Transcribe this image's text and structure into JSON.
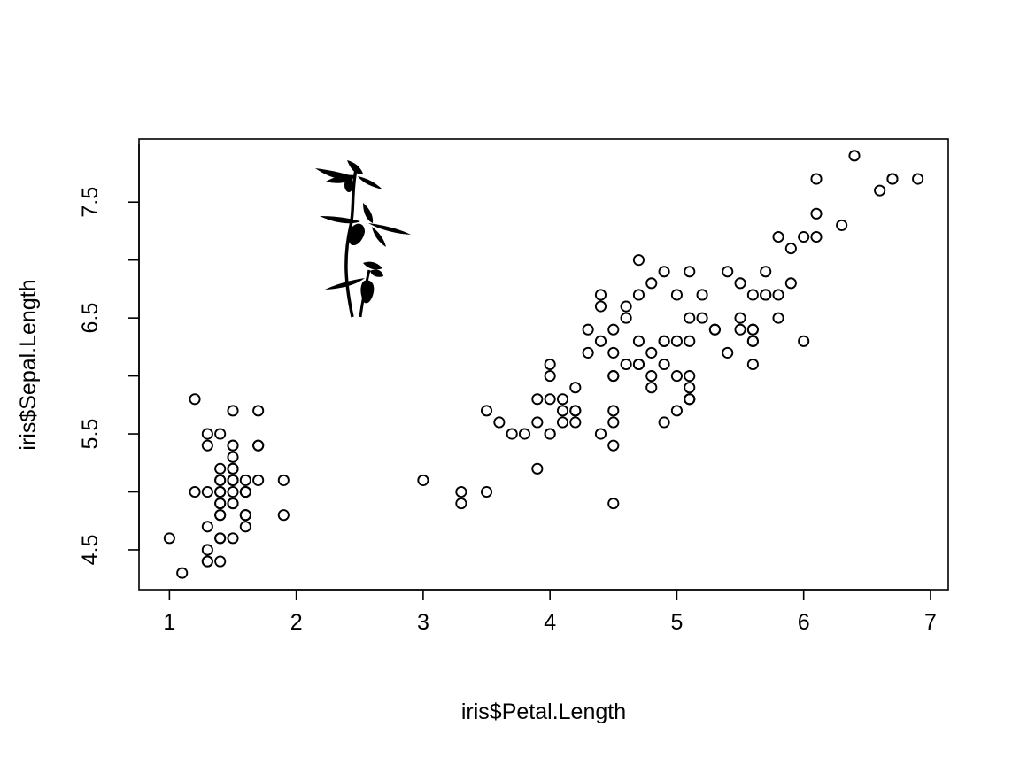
{
  "chart_data": {
    "type": "scatter",
    "title": "",
    "xlabel": "iris$Petal.Length",
    "ylabel": "iris$Sepal.Length",
    "xlim": [
      0.76,
      7.14
    ],
    "ylim": [
      4.156,
      8.044
    ],
    "xticks": [
      1,
      2,
      3,
      4,
      5,
      6,
      7
    ],
    "xtick_labels": [
      "1",
      "2",
      "3",
      "4",
      "5",
      "6",
      "7"
    ],
    "yticks": [
      4.5,
      5.0,
      5.5,
      6.0,
      6.5,
      7.0,
      7.5
    ],
    "ytick_labels": [
      "4.5",
      "5.5",
      "6.5",
      "7.5"
    ],
    "grid": false,
    "legend": "none",
    "marker": "open-circle",
    "decoration": "orchid-silhouette",
    "x": [
      1.4,
      1.4,
      1.3,
      1.5,
      1.4,
      1.7,
      1.4,
      1.5,
      1.4,
      1.5,
      1.5,
      1.6,
      1.4,
      1.1,
      1.2,
      1.5,
      1.3,
      1.4,
      1.7,
      1.5,
      1.7,
      1.5,
      1.0,
      1.7,
      1.9,
      1.6,
      1.6,
      1.5,
      1.4,
      1.6,
      1.6,
      1.5,
      1.5,
      1.4,
      1.5,
      1.2,
      1.3,
      1.4,
      1.3,
      1.5,
      1.3,
      1.3,
      1.3,
      1.6,
      1.9,
      1.4,
      1.6,
      1.4,
      1.5,
      1.4,
      4.7,
      4.5,
      4.9,
      4.0,
      4.6,
      4.5,
      4.7,
      3.3,
      4.6,
      3.9,
      3.5,
      4.2,
      4.0,
      4.7,
      3.6,
      4.4,
      4.5,
      4.1,
      4.5,
      3.9,
      4.8,
      4.0,
      4.9,
      4.7,
      4.3,
      4.4,
      4.8,
      5.0,
      4.5,
      3.5,
      3.8,
      3.7,
      3.9,
      5.1,
      4.5,
      4.5,
      4.7,
      4.4,
      4.1,
      4.0,
      4.4,
      4.6,
      4.0,
      3.3,
      4.2,
      4.2,
      4.2,
      4.3,
      3.0,
      4.1,
      6.0,
      5.1,
      5.9,
      5.6,
      5.8,
      6.6,
      4.5,
      6.3,
      5.8,
      6.1,
      5.1,
      5.3,
      5.5,
      5.0,
      5.1,
      5.3,
      5.5,
      6.7,
      6.9,
      5.0,
      5.7,
      4.9,
      6.7,
      4.9,
      5.7,
      6.0,
      4.8,
      4.9,
      5.6,
      5.8,
      6.1,
      6.4,
      5.6,
      5.1,
      5.6,
      6.1,
      5.6,
      5.5,
      4.8,
      5.4,
      5.6,
      5.1,
      5.1,
      5.9,
      5.7,
      5.2,
      5.0,
      5.2,
      5.4,
      5.1
    ],
    "y": [
      5.1,
      4.9,
      4.7,
      4.6,
      5.0,
      5.4,
      4.6,
      5.0,
      4.4,
      4.9,
      5.4,
      4.8,
      4.8,
      4.3,
      5.8,
      5.7,
      5.4,
      5.1,
      5.7,
      5.1,
      5.4,
      5.1,
      4.6,
      5.1,
      4.8,
      5.0,
      5.0,
      5.2,
      5.2,
      4.7,
      4.8,
      5.4,
      5.2,
      5.5,
      4.9,
      5.0,
      5.5,
      4.9,
      4.4,
      5.1,
      5.0,
      4.5,
      4.4,
      5.0,
      5.1,
      4.8,
      5.1,
      4.6,
      5.3,
      5.0,
      7.0,
      6.4,
      6.9,
      5.5,
      6.5,
      5.7,
      6.3,
      4.9,
      6.6,
      5.2,
      5.0,
      5.9,
      6.0,
      6.1,
      5.6,
      6.7,
      5.6,
      5.8,
      6.2,
      5.6,
      5.9,
      6.1,
      6.3,
      6.1,
      6.4,
      6.6,
      6.8,
      6.7,
      6.0,
      5.7,
      5.5,
      5.5,
      5.8,
      6.0,
      5.4,
      6.0,
      6.7,
      6.3,
      5.6,
      5.5,
      5.5,
      6.1,
      5.8,
      5.0,
      5.6,
      5.7,
      5.7,
      6.2,
      5.1,
      5.7,
      6.3,
      5.8,
      7.1,
      6.3,
      6.5,
      7.6,
      4.9,
      7.3,
      6.7,
      7.2,
      6.5,
      6.4,
      6.8,
      5.7,
      5.8,
      6.4,
      6.5,
      7.7,
      7.7,
      6.0,
      6.9,
      5.6,
      7.7,
      6.3,
      6.7,
      7.2,
      6.2,
      6.1,
      6.4,
      7.2,
      7.4,
      7.9,
      6.4,
      6.3,
      6.1,
      7.7,
      6.3,
      6.4,
      6.0,
      6.9,
      6.7,
      6.9,
      5.8,
      6.8,
      6.7,
      6.7,
      6.3,
      6.5,
      6.2,
      5.9
    ]
  }
}
